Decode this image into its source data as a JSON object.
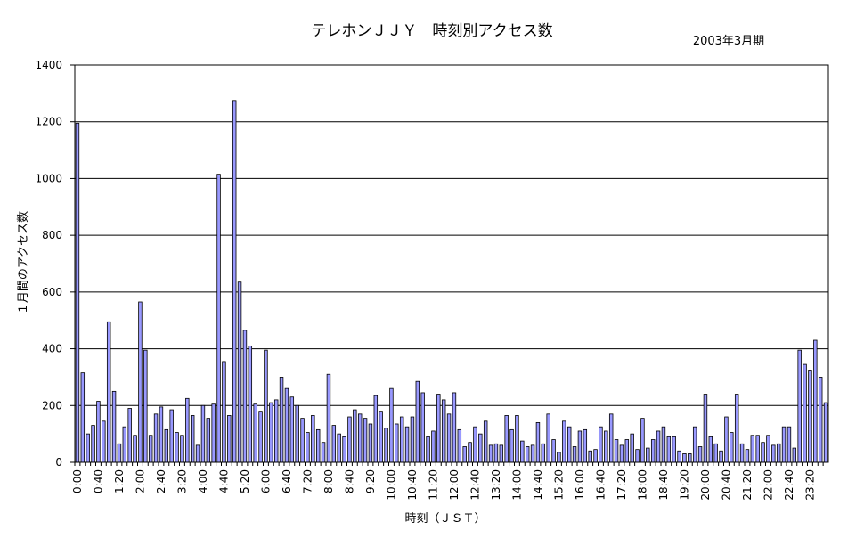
{
  "chart_data": {
    "type": "bar",
    "title": "テレホンＪＪＹ　時刻別アクセス数",
    "subtitle": "2003年3月期",
    "xlabel": "時刻（ＪＳＴ）",
    "ylabel": "１月間のアクセス数",
    "ylim": [
      0,
      1400
    ],
    "yticks": [
      "0",
      "200",
      "400",
      "600",
      "800",
      "1000",
      "1200",
      "1400"
    ],
    "ytick_values": [
      0,
      200,
      400,
      600,
      800,
      1000,
      1200,
      1400
    ],
    "grid": true,
    "bar_color": "#9999ff",
    "x_tick_every": 4,
    "categories": [
      "0:00",
      "0:10",
      "0:20",
      "0:30",
      "0:40",
      "0:50",
      "1:00",
      "1:10",
      "1:20",
      "1:30",
      "1:40",
      "1:50",
      "2:00",
      "2:10",
      "2:20",
      "2:30",
      "2:40",
      "2:50",
      "3:00",
      "3:10",
      "3:20",
      "3:30",
      "3:40",
      "3:50",
      "4:00",
      "4:10",
      "4:20",
      "4:30",
      "4:40",
      "4:50",
      "5:00",
      "5:10",
      "5:20",
      "5:30",
      "5:40",
      "5:50",
      "6:00",
      "6:10",
      "6:20",
      "6:30",
      "6:40",
      "6:50",
      "7:00",
      "7:10",
      "7:20",
      "7:30",
      "7:40",
      "7:50",
      "8:00",
      "8:10",
      "8:20",
      "8:30",
      "8:40",
      "8:50",
      "9:00",
      "9:10",
      "9:20",
      "9:30",
      "9:40",
      "9:50",
      "10:00",
      "10:10",
      "10:20",
      "10:30",
      "10:40",
      "10:50",
      "11:00",
      "11:10",
      "11:20",
      "11:30",
      "11:40",
      "11:50",
      "12:00",
      "12:10",
      "12:20",
      "12:30",
      "12:40",
      "12:50",
      "13:00",
      "13:10",
      "13:20",
      "13:30",
      "13:40",
      "13:50",
      "14:00",
      "14:10",
      "14:20",
      "14:30",
      "14:40",
      "14:50",
      "15:00",
      "15:10",
      "15:20",
      "15:30",
      "15:40",
      "15:50",
      "16:00",
      "16:10",
      "16:20",
      "16:30",
      "16:40",
      "16:50",
      "17:00",
      "17:10",
      "17:20",
      "17:30",
      "17:40",
      "17:50",
      "18:00",
      "18:10",
      "18:20",
      "18:30",
      "18:40",
      "18:50",
      "19:00",
      "19:10",
      "19:20",
      "19:30",
      "19:40",
      "19:50",
      "20:00",
      "20:10",
      "20:20",
      "20:30",
      "20:40",
      "20:50",
      "21:00",
      "21:10",
      "21:20",
      "21:30",
      "21:40",
      "21:50",
      "22:00",
      "22:10",
      "22:20",
      "22:30",
      "22:40",
      "22:50",
      "23:00",
      "23:10",
      "23:20",
      "23:30",
      "23:40",
      "23:50"
    ],
    "values": [
      1195,
      315,
      100,
      130,
      215,
      145,
      495,
      250,
      65,
      125,
      190,
      95,
      565,
      395,
      95,
      170,
      195,
      115,
      185,
      105,
      95,
      225,
      165,
      60,
      200,
      155,
      205,
      1015,
      355,
      165,
      1275,
      635,
      465,
      410,
      205,
      180,
      395,
      210,
      220,
      300,
      260,
      230,
      200,
      155,
      105,
      165,
      115,
      70,
      310,
      130,
      100,
      90,
      160,
      185,
      170,
      155,
      135,
      235,
      180,
      120,
      260,
      135,
      160,
      125,
      160,
      285,
      245,
      90,
      110,
      240,
      220,
      170,
      245,
      115,
      55,
      70,
      125,
      100,
      145,
      60,
      65,
      60,
      165,
      115,
      165,
      75,
      55,
      60,
      140,
      65,
      170,
      80,
      35,
      145,
      125,
      55,
      110,
      115,
      40,
      45,
      125,
      110,
      170,
      80,
      60,
      80,
      100,
      45,
      155,
      50,
      80,
      110,
      125,
      90,
      90,
      40,
      30,
      30,
      125,
      55,
      240,
      90,
      65,
      40,
      160,
      105,
      240,
      65,
      45,
      95,
      95,
      70,
      95,
      60,
      65,
      125,
      125,
      50,
      395,
      345,
      325,
      430,
      300,
      210
    ]
  }
}
